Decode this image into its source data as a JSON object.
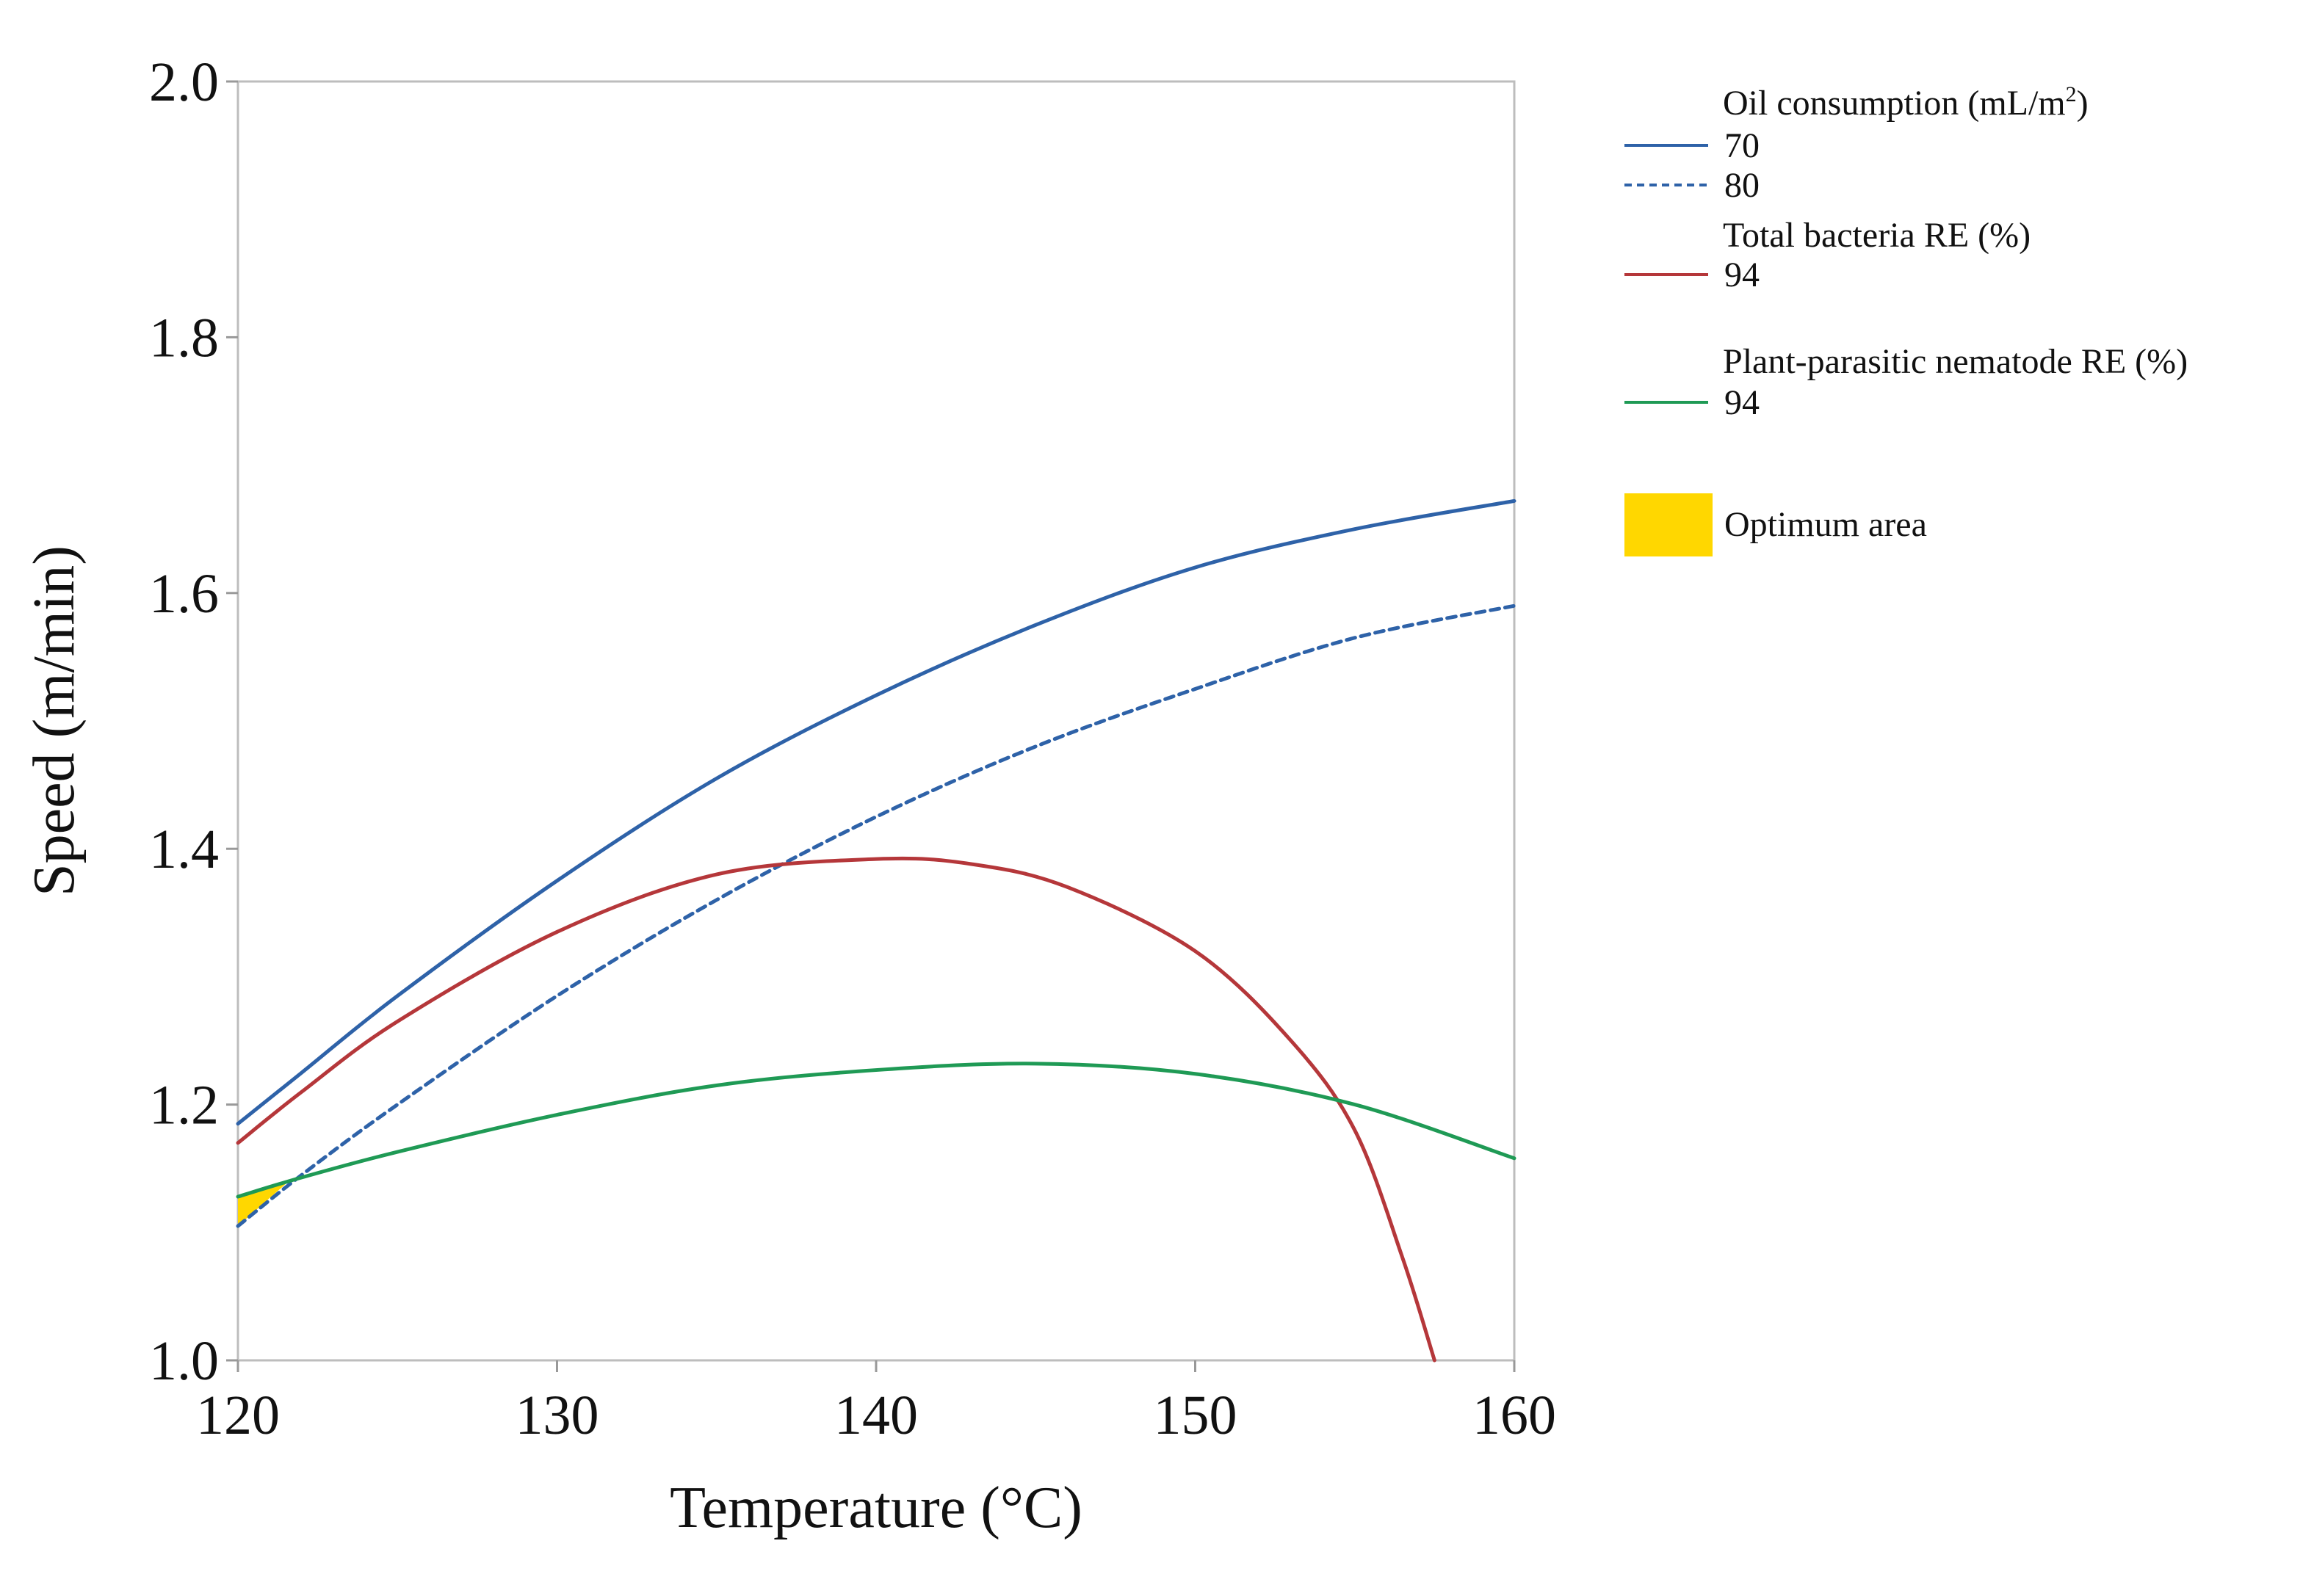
{
  "chart_data": {
    "type": "line",
    "title": "",
    "xlabel": "Temperature (°C)",
    "ylabel": "Speed (m/min)",
    "xlim": [
      120,
      160
    ],
    "ylim": [
      1.0,
      2.0
    ],
    "x_ticks": [
      120,
      130,
      140,
      150,
      160
    ],
    "x_tick_labels": [
      "120",
      "130",
      "140",
      "150",
      "160"
    ],
    "y_ticks": [
      1.0,
      1.2,
      1.4,
      1.6,
      1.8,
      2.0
    ],
    "y_tick_labels": [
      "1.0",
      "1.2",
      "1.4",
      "1.6",
      "1.8",
      "2.0"
    ],
    "grid": false,
    "legend_position": "right",
    "series": [
      {
        "name": "Oil consumption 70",
        "group": "Oil consumption (mL/m²)",
        "label": "70",
        "color": "#2e62a8",
        "style": "solid",
        "x": [
          120,
          122,
          125,
          130,
          135,
          140,
          145,
          150,
          155,
          160
        ],
        "y": [
          1.185,
          1.225,
          1.285,
          1.375,
          1.455,
          1.52,
          1.575,
          1.62,
          1.65,
          1.672
        ]
      },
      {
        "name": "Oil consumption 80",
        "group": "Oil consumption (mL/m²)",
        "label": "80",
        "color": "#2e62a8",
        "style": "dashed",
        "x": [
          120,
          122,
          125,
          130,
          135,
          140,
          145,
          150,
          155,
          160
        ],
        "y": [
          1.105,
          1.145,
          1.2,
          1.285,
          1.36,
          1.425,
          1.48,
          1.525,
          1.565,
          1.59
        ]
      },
      {
        "name": "Total bacteria RE 94",
        "group": "Total bacteria RE (%)",
        "label": "94",
        "color": "#b5373a",
        "style": "solid",
        "x": [
          120,
          122,
          125,
          130,
          135,
          140,
          143,
          146,
          150,
          153,
          155,
          156.5,
          157.5
        ],
        "y": [
          1.17,
          1.21,
          1.265,
          1.335,
          1.38,
          1.392,
          1.388,
          1.37,
          1.32,
          1.25,
          1.18,
          1.08,
          1.0
        ]
      },
      {
        "name": "Plant-parasitic nematode RE 94",
        "group": "Plant-parasitic nematode RE (%)",
        "label": "94",
        "color": "#1f9a55",
        "style": "solid",
        "x": [
          120,
          122,
          125,
          130,
          135,
          140,
          145,
          150,
          155,
          160
        ],
        "y": [
          1.128,
          1.143,
          1.163,
          1.192,
          1.215,
          1.227,
          1.232,
          1.224,
          1.2,
          1.158
        ]
      }
    ],
    "optimum_area": {
      "label": "Optimum area",
      "color": "#ffd700",
      "polygon": [
        [
          120.0,
          1.128
        ],
        [
          121.5,
          1.138
        ],
        [
          120.0,
          1.105
        ]
      ]
    },
    "legend": {
      "groups": [
        {
          "title": "Oil consumption (mL/m",
          "title_sup": "2",
          "title_end": ")",
          "entries": [
            "70",
            "80"
          ]
        },
        {
          "title": "Total bacteria RE (%)",
          "entries": [
            "94"
          ]
        },
        {
          "title": "Plant-parasitic nematode RE (%)",
          "entries": [
            "94"
          ]
        }
      ],
      "optimum_label": "Optimum area"
    }
  }
}
